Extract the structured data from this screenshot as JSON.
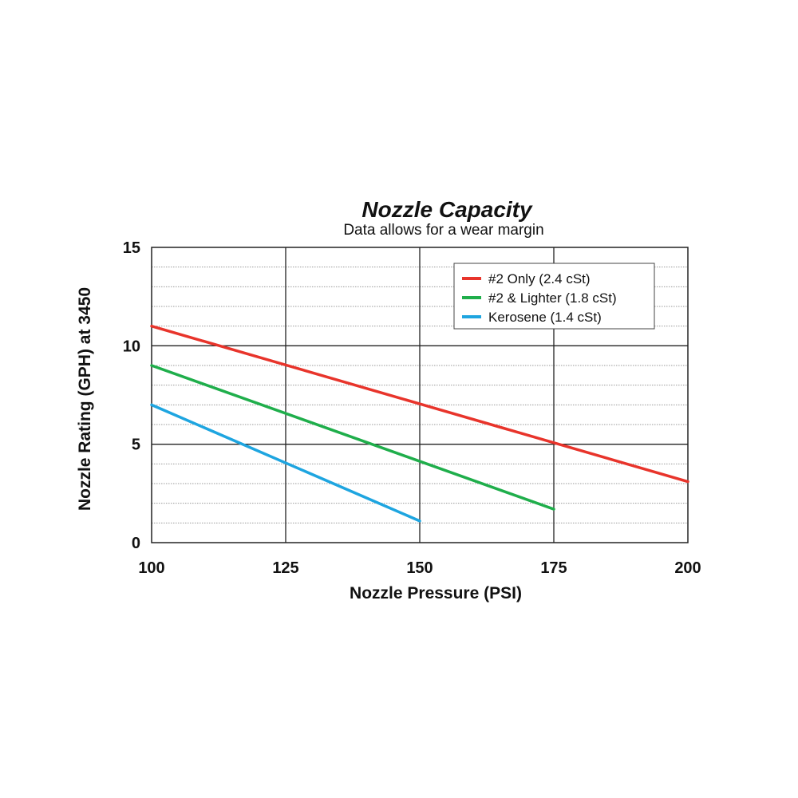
{
  "chart_data": {
    "type": "line",
    "title": "Nozzle Capacity",
    "subtitle": "Data allows for a wear margin",
    "xlabel": "Nozzle Pressure (PSI)",
    "ylabel": "Nozzle Rating (GPH) at 3450",
    "xlim": [
      100,
      200
    ],
    "ylim": [
      0,
      15
    ],
    "x_ticks": [
      100,
      125,
      150,
      175,
      200
    ],
    "y_ticks": [
      0,
      5,
      10,
      15
    ],
    "grid": true,
    "legend_position": "top-right",
    "series": [
      {
        "name": "#2 Only (2.4 cSt)",
        "color": "#e8342b",
        "x": [
          100,
          200
        ],
        "y": [
          11.0,
          3.1
        ]
      },
      {
        "name": "#2 & Lighter (1.8 cSt)",
        "color": "#1fae4b",
        "x": [
          100,
          175
        ],
        "y": [
          9.0,
          1.7
        ]
      },
      {
        "name": "Kerosene (1.4 cSt)",
        "color": "#1ea5e0",
        "x": [
          100,
          150
        ],
        "y": [
          7.0,
          1.1
        ]
      }
    ]
  }
}
